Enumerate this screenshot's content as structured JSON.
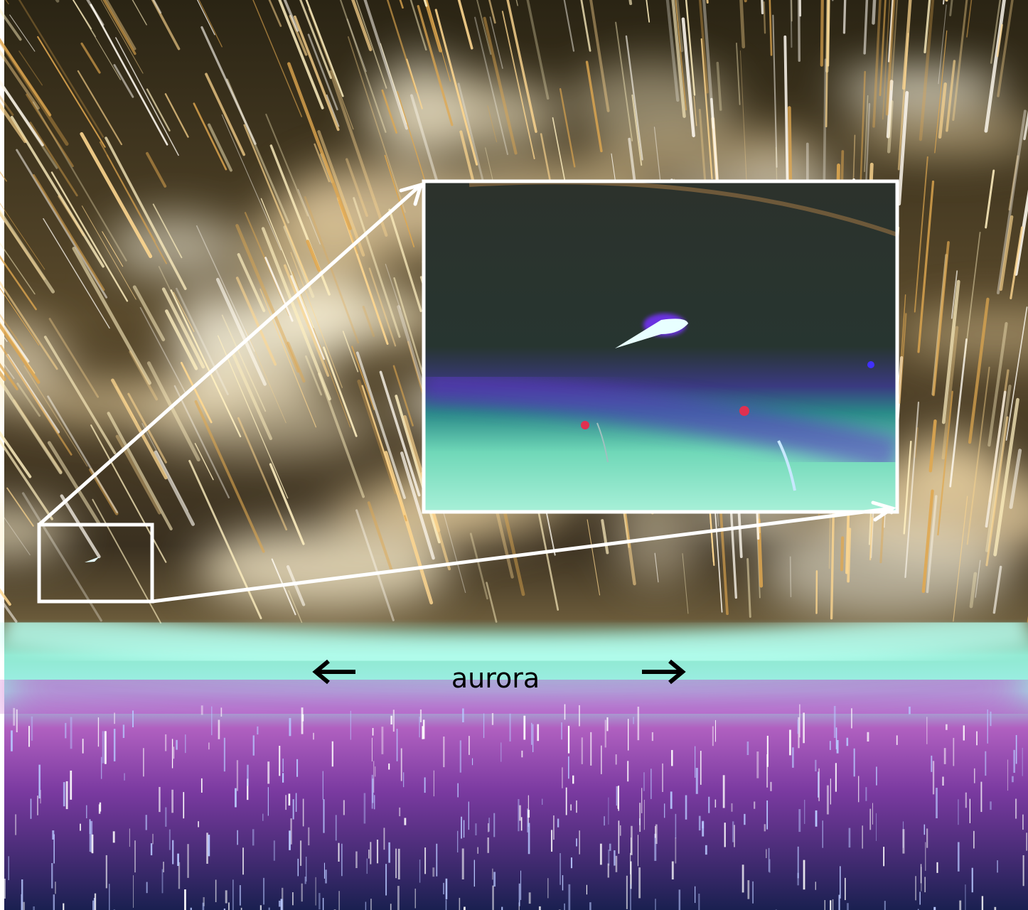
{
  "label": "aurora"
}
